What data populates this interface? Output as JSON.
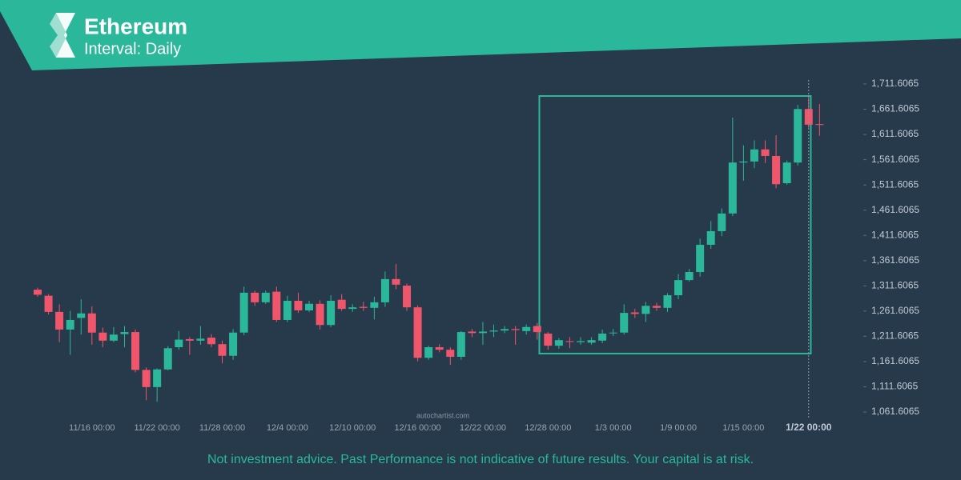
{
  "chart_data": {
    "type": "candlestick",
    "title": "Ethereum",
    "subtitle": "Interval: Daily",
    "watermark": "autochartist.com",
    "disclaimer": "Not investment advice. Past Performance is not indicative of future results. Your capital is at risk.",
    "crosshair_label": "1/22 00:00",
    "up_color": "#2bb89a",
    "down_color": "#f0566b",
    "categories": [
      null,
      null,
      null,
      null,
      null,
      "11/16 00:00",
      null,
      null,
      null,
      null,
      null,
      "11/22 00:00",
      null,
      null,
      null,
      null,
      null,
      "11/28 00:00",
      null,
      null,
      null,
      null,
      null,
      "12/4 00:00",
      null,
      null,
      null,
      null,
      null,
      "12/10 00:00",
      null,
      null,
      null,
      null,
      null,
      "12/16 00:00",
      null,
      null,
      null,
      null,
      null,
      "12/22 00:00",
      null,
      null,
      null,
      null,
      null,
      "12/28 00:00",
      null,
      null,
      null,
      null,
      null,
      "1/3 00:00",
      null,
      null,
      null,
      null,
      null,
      "1/9 00:00",
      null,
      null,
      null,
      null,
      null,
      "1/15 00:00",
      null,
      null,
      null,
      null,
      null,
      null,
      null
    ],
    "open": [
      1304,
      1292,
      1260,
      1225,
      1248,
      1257,
      1219,
      1203,
      1216,
      1220,
      1145,
      1111,
      1146,
      1190,
      1206,
      1203,
      1209,
      1196,
      1173,
      1219,
      1298,
      1279,
      1300,
      1244,
      1282,
      1263,
      1276,
      1234,
      1284,
      1266,
      1270,
      1268,
      1279,
      1325,
      1312,
      1269,
      1169,
      1190,
      1185,
      1171,
      1221,
      1218,
      1221,
      1223,
      1226,
      1222,
      1232,
      1217,
      1193,
      1202,
      1200,
      1199,
      1203,
      1218,
      1219,
      1259,
      1256,
      1272,
      1268,
      1293,
      1323,
      1339,
      1393,
      1420,
      1455,
      1556,
      1558,
      1582,
      1569,
      1515,
      1556,
      1662,
      1632
    ],
    "high": [
      1308,
      1295,
      1275,
      1262,
      1285,
      1271,
      1229,
      1230,
      1232,
      1225,
      1150,
      1148,
      1192,
      1222,
      1210,
      1232,
      1216,
      1203,
      1226,
      1310,
      1302,
      1302,
      1310,
      1292,
      1298,
      1282,
      1283,
      1293,
      1295,
      1275,
      1280,
      1290,
      1340,
      1355,
      1316,
      1273,
      1193,
      1196,
      1190,
      1222,
      1226,
      1240,
      1235,
      1232,
      1232,
      1235,
      1238,
      1220,
      1208,
      1210,
      1210,
      1210,
      1225,
      1226,
      1275,
      1266,
      1280,
      1278,
      1297,
      1335,
      1345,
      1405,
      1440,
      1465,
      1645,
      1590,
      1600,
      1600,
      1610,
      1560,
      1670,
      1685,
      1672
    ],
    "low": [
      1290,
      1255,
      1200,
      1175,
      1215,
      1195,
      1190,
      1200,
      1190,
      1140,
      1085,
      1082,
      1144,
      1185,
      1175,
      1195,
      1190,
      1158,
      1165,
      1214,
      1272,
      1276,
      1240,
      1240,
      1258,
      1260,
      1225,
      1230,
      1262,
      1260,
      1262,
      1245,
      1270,
      1305,
      1262,
      1162,
      1165,
      1180,
      1155,
      1165,
      1210,
      1195,
      1210,
      1218,
      1195,
      1215,
      1205,
      1185,
      1187,
      1188,
      1195,
      1195,
      1198,
      1212,
      1215,
      1248,
      1240,
      1262,
      1260,
      1285,
      1320,
      1330,
      1385,
      1410,
      1450,
      1520,
      1545,
      1555,
      1505,
      1512,
      1550,
      1625,
      1609
    ],
    "close": [
      1294,
      1260,
      1225,
      1244,
      1257,
      1219,
      1203,
      1215,
      1220,
      1145,
      1111,
      1146,
      1188,
      1205,
      1203,
      1207,
      1196,
      1173,
      1219,
      1298,
      1279,
      1298,
      1244,
      1282,
      1263,
      1276,
      1234,
      1282,
      1266,
      1269,
      1268,
      1279,
      1325,
      1314,
      1269,
      1169,
      1190,
      1185,
      1171,
      1220,
      1218,
      1221,
      1223,
      1226,
      1224,
      1230,
      1220,
      1193,
      1204,
      1201,
      1202,
      1204,
      1217,
      1219,
      1258,
      1256,
      1272,
      1268,
      1293,
      1323,
      1339,
      1393,
      1420,
      1455,
      1556,
      1558,
      1582,
      1569,
      1513,
      1556,
      1662,
      1631,
      1631
    ],
    "pattern_box": {
      "x": [
        46.2,
        71.2
      ],
      "y": [
        1177.4,
        1687.8
      ],
      "color": "#2bb89a"
    },
    "ylim": [
      1061.6065,
      1711.6065
    ],
    "yticks": [
      {
        "value": 1711.6065,
        "label": "1,711.6065"
      },
      {
        "value": 1661.6065,
        "label": "1,661.6065"
      },
      {
        "value": 1611.6065,
        "label": "1,611.6065"
      },
      {
        "value": 1561.6065,
        "label": "1,561.6065"
      },
      {
        "value": 1511.6065,
        "label": "1,511.6065"
      },
      {
        "value": 1461.6065,
        "label": "1,461.6065"
      },
      {
        "value": 1411.6065,
        "label": "1,411.6065"
      },
      {
        "value": 1361.6065,
        "label": "1,361.6065"
      },
      {
        "value": 1311.6065,
        "label": "1,311.6065"
      },
      {
        "value": 1261.6065,
        "label": "1,261.6065"
      },
      {
        "value": 1211.6065,
        "label": "1,211.6065"
      },
      {
        "value": 1161.6065,
        "label": "1,161.6065"
      },
      {
        "value": 1111.6065,
        "label": "1,111.6065"
      },
      {
        "value": 1061.6065,
        "label": "1,061.6065"
      }
    ]
  }
}
